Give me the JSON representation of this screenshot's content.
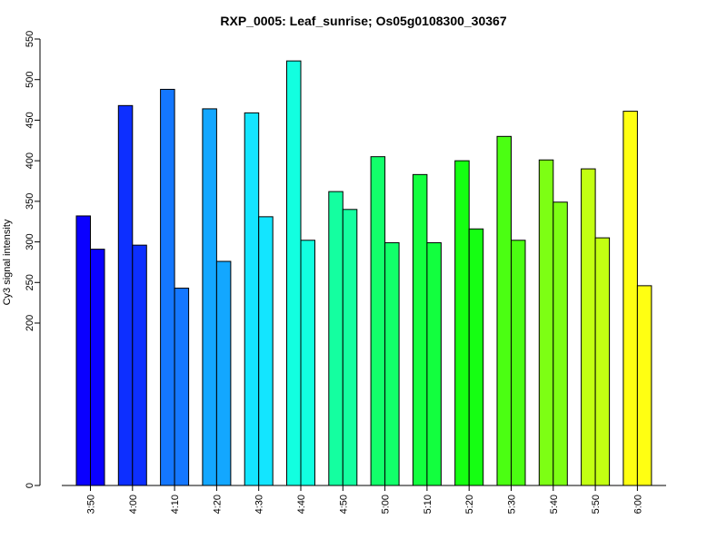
{
  "chart_data": {
    "type": "bar",
    "title": "RXP_0005: Leaf_sunrise; Os05g0108300_30367",
    "ylabel": "Cy3 signal intensity",
    "xlabel": "",
    "categories": [
      "3:50",
      "4:00",
      "4:10",
      "4:20",
      "4:30",
      "4:40",
      "4:50",
      "5:00",
      "5:10",
      "5:20",
      "5:30",
      "5:40",
      "5:50",
      "6:00"
    ],
    "series": [
      {
        "values": [
          332,
          468,
          488,
          464,
          459,
          523,
          362,
          405,
          383,
          400,
          430,
          401,
          390,
          461
        ]
      },
      {
        "values": [
          291,
          296,
          243,
          276,
          331,
          302,
          340,
          299,
          299,
          316,
          302,
          349,
          305,
          246
        ]
      }
    ],
    "colors": [
      "#0A00FF",
      "#0D2FFF",
      "#1477FF",
      "#13A7FF",
      "#13E5FF",
      "#12FFE0",
      "#14FFA0",
      "#12FF6A",
      "#12FF3E",
      "#15FF12",
      "#4BFF12",
      "#7DFF14",
      "#C3FF12",
      "#FFFF12"
    ],
    "y_ticks": [
      0,
      200,
      250,
      300,
      350,
      400,
      450,
      500,
      550
    ],
    "y_scale": "piecewise: 0 to 200 compressed, 200 to 550 linear",
    "grid": false,
    "legend": "none"
  }
}
